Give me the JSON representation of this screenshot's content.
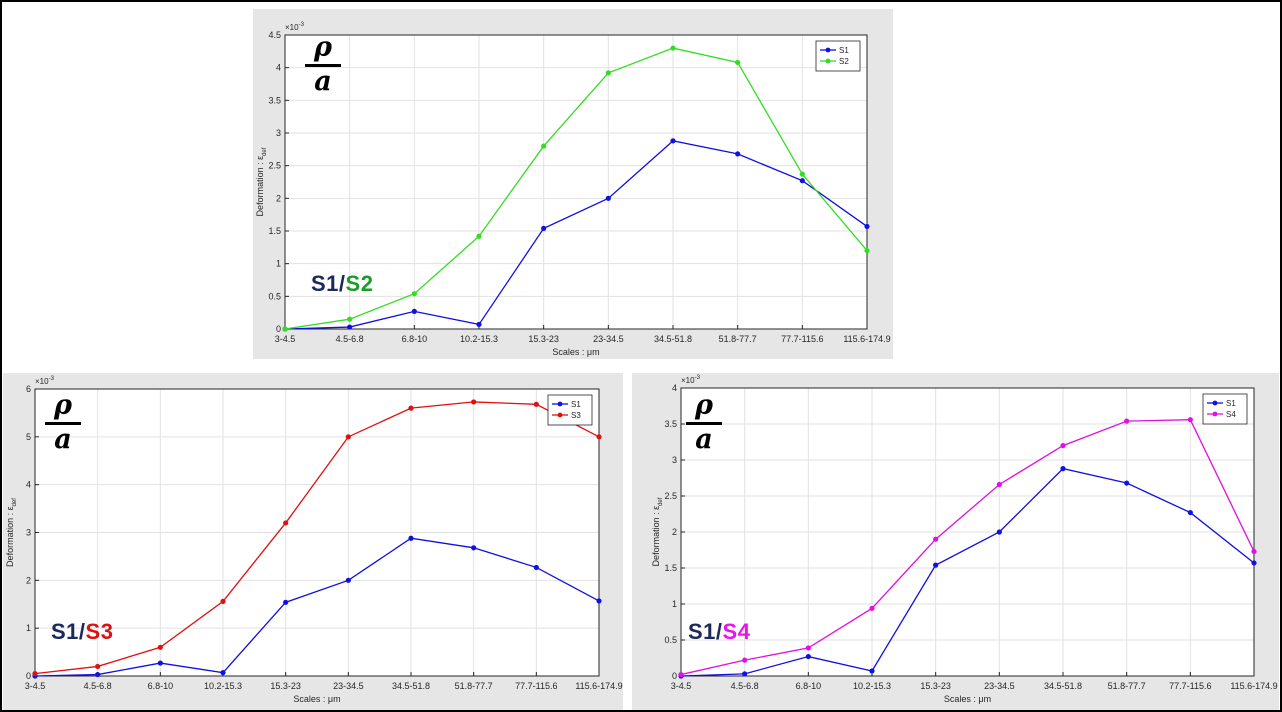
{
  "overlay": {
    "numerator": "ρ",
    "denominator": "a",
    "separator": "/"
  },
  "colors": {
    "S1": "#1010e0",
    "S2": "#33dd22",
    "S3": "#e01010",
    "S4": "#e010e0",
    "label_S1": "#1b2a5a",
    "label_S2": "#1a9b2a",
    "label_S3": "#dd1111",
    "label_S4": "#ee11ee"
  },
  "chart_data": [
    {
      "type": "line",
      "panel_label": {
        "ref": "S1",
        "other": "S2"
      },
      "ylabel": "Deformation : ε",
      "ylabel_sub": "def",
      "xlabel": "Scales : μm",
      "multiplier": "×10",
      "multiplier_exp": "-3",
      "categories": [
        "3-4.5",
        "4.5-6.8",
        "6.8-10",
        "10.2-15.3",
        "15.3-23",
        "23-34.5",
        "34.5-51.8",
        "51.8-77.7",
        "77.7-115.6",
        "115.6-174.9"
      ],
      "ylim": [
        0,
        4.5
      ],
      "yticks": [
        0,
        0.5,
        1,
        1.5,
        2,
        2.5,
        3,
        3.5,
        4,
        4.5
      ],
      "ytick_labels": [
        "0",
        "0.5",
        "1",
        "1.5",
        "2",
        "2.5",
        "3",
        "3.5",
        "4",
        "4.5"
      ],
      "grid": true,
      "legend": "top-right",
      "series": [
        {
          "name": "S1",
          "color": "#1010e0",
          "values": [
            0.0,
            0.03,
            0.27,
            0.07,
            1.54,
            2.0,
            2.88,
            2.68,
            2.27,
            1.57
          ]
        },
        {
          "name": "S2",
          "color": "#33dd22",
          "values": [
            0.0,
            0.15,
            0.54,
            1.42,
            2.8,
            3.92,
            4.3,
            4.08,
            2.37,
            1.2
          ]
        }
      ]
    },
    {
      "type": "line",
      "panel_label": {
        "ref": "S1",
        "other": "S3"
      },
      "ylabel": "Deformation : ε",
      "ylabel_sub": "def",
      "xlabel": "Scales : μm",
      "multiplier": "×10",
      "multiplier_exp": "-3",
      "categories": [
        "3-4.5",
        "4.5-6.8",
        "6.8-10",
        "10.2-15.3",
        "15.3-23",
        "23-34.5",
        "34.5-51.8",
        "51.8-77.7",
        "77.7-115.6",
        "115.6-174.9"
      ],
      "ylim": [
        0,
        6
      ],
      "yticks": [
        0,
        1,
        2,
        3,
        4,
        5,
        6
      ],
      "ytick_labels": [
        "0",
        "1",
        "2",
        "3",
        "4",
        "5",
        "6"
      ],
      "grid": true,
      "legend": "top-right",
      "series": [
        {
          "name": "S1",
          "color": "#1010e0",
          "values": [
            0.0,
            0.03,
            0.27,
            0.07,
            1.54,
            2.0,
            2.88,
            2.68,
            2.27,
            1.57
          ]
        },
        {
          "name": "S3",
          "color": "#e01010",
          "values": [
            0.05,
            0.2,
            0.6,
            1.56,
            3.2,
            5.0,
            5.6,
            5.73,
            5.68,
            5.0
          ]
        }
      ]
    },
    {
      "type": "line",
      "panel_label": {
        "ref": "S1",
        "other": "S4"
      },
      "ylabel": "Deformation : ε",
      "ylabel_sub": "def",
      "xlabel": "Scales : μm",
      "multiplier": "×10",
      "multiplier_exp": "-3",
      "categories": [
        "3-4.5",
        "4.5-6.8",
        "6.8-10",
        "10.2-15.3",
        "15.3-23",
        "23-34.5",
        "34.5-51.8",
        "51.8-77.7",
        "77.7-115.6",
        "115.6-174.9"
      ],
      "ylim": [
        0,
        4
      ],
      "yticks": [
        0,
        0.5,
        1,
        1.5,
        2,
        2.5,
        3,
        3.5,
        4
      ],
      "ytick_labels": [
        "0",
        "0.5",
        "1",
        "1.5",
        "2",
        "2.5",
        "3",
        "3.5",
        "4"
      ],
      "grid": true,
      "legend": "top-right",
      "series": [
        {
          "name": "S1",
          "color": "#1010e0",
          "values": [
            0.0,
            0.03,
            0.27,
            0.07,
            1.54,
            2.0,
            2.88,
            2.68,
            2.27,
            1.57
          ]
        },
        {
          "name": "S4",
          "color": "#e010e0",
          "values": [
            0.02,
            0.22,
            0.39,
            0.94,
            1.9,
            2.66,
            3.2,
            3.54,
            3.56,
            1.73
          ]
        }
      ]
    }
  ]
}
